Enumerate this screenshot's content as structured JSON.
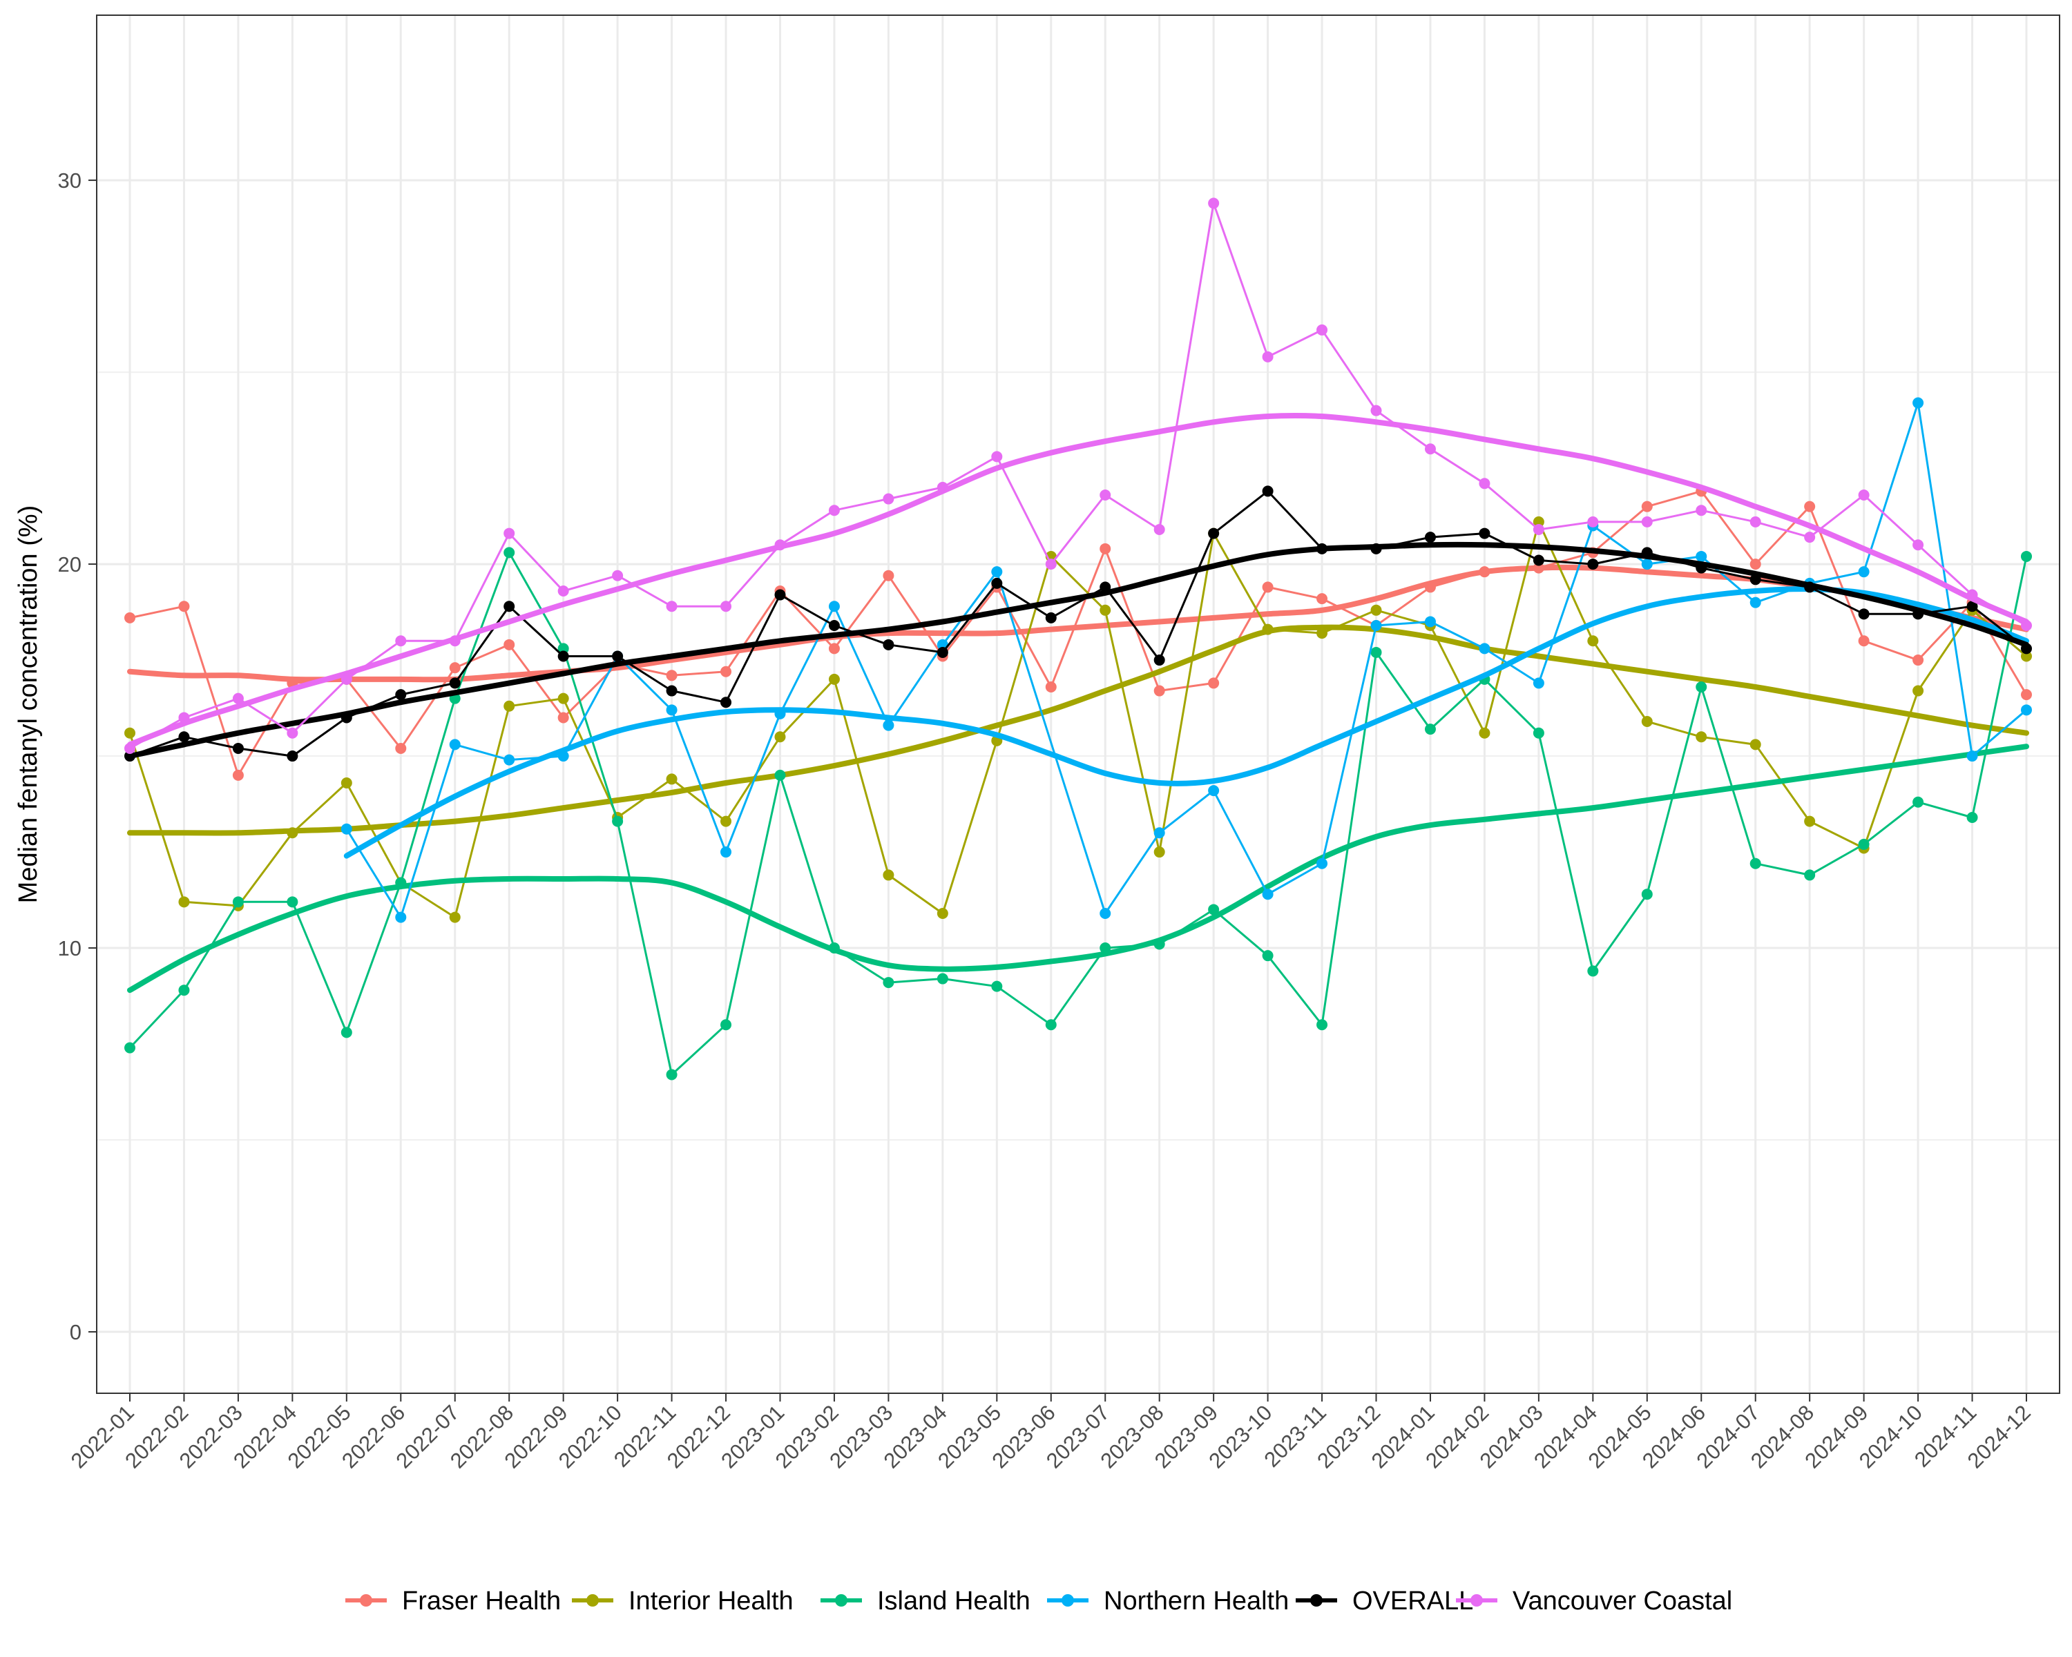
{
  "chart_data": {
    "type": "line",
    "title": "",
    "xlabel": "",
    "ylabel": "Median fentanyl concentration (%)",
    "ylim": [
      -1.6,
      34.3
    ],
    "yticks": [
      0,
      10,
      20,
      30
    ],
    "grid": true,
    "legend_position": "bottom",
    "categories": [
      "2022-01",
      "2022-02",
      "2022-03",
      "2022-04",
      "2022-05",
      "2022-06",
      "2022-07",
      "2022-08",
      "2022-09",
      "2022-10",
      "2022-11",
      "2022-12",
      "2023-01",
      "2023-02",
      "2023-03",
      "2023-04",
      "2023-05",
      "2023-06",
      "2023-07",
      "2023-08",
      "2023-09",
      "2023-10",
      "2023-11",
      "2023-12",
      "2024-01",
      "2024-02",
      "2024-03",
      "2024-04",
      "2024-05",
      "2024-06",
      "2024-07",
      "2024-08",
      "2024-09",
      "2024-10",
      "2024-11",
      "2024-12"
    ],
    "series": [
      {
        "name": "Fraser Health",
        "color": "#F8766D",
        "values": [
          18.6,
          18.9,
          14.5,
          16.9,
          17.0,
          15.2,
          17.3,
          17.9,
          16.0,
          17.4,
          17.1,
          17.2,
          19.3,
          17.8,
          19.7,
          17.6,
          19.4,
          16.8,
          20.4,
          16.7,
          16.9,
          19.4,
          19.1,
          18.4,
          19.4,
          19.8,
          19.9,
          20.3,
          21.5,
          21.9,
          20.0,
          21.5,
          18.0,
          17.5,
          19.0,
          16.6
        ],
        "trend": [
          17.2,
          17.1,
          17.1,
          17.0,
          17.0,
          17.0,
          17.0,
          17.1,
          17.2,
          17.3,
          17.5,
          17.7,
          17.9,
          18.1,
          18.2,
          18.2,
          18.2,
          18.3,
          18.4,
          18.5,
          18.6,
          18.7,
          18.8,
          19.1,
          19.5,
          19.8,
          19.9,
          19.9,
          19.8,
          19.7,
          19.6,
          19.4,
          19.2,
          18.9,
          18.6,
          18.3
        ]
      },
      {
        "name": "Interior Health",
        "color": "#A3A500",
        "values": [
          15.6,
          11.2,
          11.1,
          13.0,
          14.3,
          11.7,
          10.8,
          16.3,
          16.5,
          13.4,
          14.4,
          13.3,
          15.5,
          17.0,
          11.9,
          10.9,
          15.4,
          20.2,
          18.8,
          12.5,
          20.8,
          18.3,
          18.2,
          18.8,
          18.4,
          15.6,
          21.1,
          18.0,
          15.9,
          15.5,
          15.3,
          13.3,
          12.6,
          16.7,
          18.8,
          17.6
        ],
        "trend": [
          13.0,
          13.0,
          13.0,
          13.05,
          13.1,
          13.2,
          13.3,
          13.45,
          13.65,
          13.85,
          14.05,
          14.3,
          14.5,
          14.75,
          15.05,
          15.4,
          15.8,
          16.2,
          16.7,
          17.2,
          17.75,
          18.25,
          18.35,
          18.3,
          18.1,
          17.8,
          17.6,
          17.4,
          17.2,
          17.0,
          16.8,
          16.55,
          16.3,
          16.05,
          15.8,
          15.6
        ]
      },
      {
        "name": "Island Health",
        "color": "#00BF7D",
        "values": [
          7.4,
          8.9,
          11.2,
          11.2,
          7.8,
          11.7,
          16.5,
          20.3,
          17.8,
          13.3,
          6.7,
          8.0,
          14.5,
          10.0,
          9.1,
          9.2,
          9.0,
          8.0,
          10.0,
          10.1,
          11.0,
          9.8,
          8.0,
          17.7,
          15.7,
          17.0,
          15.6,
          9.4,
          11.4,
          16.8,
          12.2,
          11.9,
          12.7,
          13.8,
          13.4,
          20.2
        ],
        "trend": [
          8.9,
          9.7,
          10.35,
          10.9,
          11.35,
          11.6,
          11.75,
          11.8,
          11.8,
          11.8,
          11.7,
          11.2,
          10.55,
          9.95,
          9.55,
          9.45,
          9.5,
          9.65,
          9.85,
          10.2,
          10.8,
          11.6,
          12.35,
          12.9,
          13.2,
          13.35,
          13.5,
          13.65,
          13.85,
          14.05,
          14.25,
          14.45,
          14.65,
          14.85,
          15.05,
          15.25
        ]
      },
      {
        "name": "Northern Health",
        "color": "#00B0F6",
        "values": [
          null,
          null,
          null,
          null,
          13.1,
          10.8,
          15.3,
          14.9,
          15.0,
          17.6,
          16.2,
          12.5,
          16.1,
          18.9,
          15.8,
          17.9,
          19.8,
          null,
          10.9,
          13.0,
          14.1,
          11.4,
          12.2,
          18.4,
          18.5,
          17.8,
          16.9,
          21.0,
          20.0,
          20.2,
          19.0,
          19.5,
          19.8,
          24.2,
          15.0,
          16.2
        ],
        "trend": [
          null,
          null,
          null,
          null,
          12.4,
          13.2,
          13.95,
          14.6,
          15.15,
          15.65,
          15.95,
          16.15,
          16.2,
          16.15,
          16.0,
          15.85,
          15.55,
          15.05,
          14.55,
          14.3,
          14.35,
          14.7,
          15.3,
          15.9,
          16.5,
          17.1,
          17.8,
          18.45,
          18.9,
          19.15,
          19.3,
          19.35,
          19.25,
          18.95,
          18.55,
          18.0
        ]
      },
      {
        "name": "OVERALL",
        "color": "#000000",
        "values": [
          15.0,
          15.5,
          15.2,
          15.0,
          16.0,
          16.6,
          16.9,
          18.9,
          17.6,
          17.6,
          16.7,
          16.4,
          19.2,
          18.4,
          17.9,
          17.7,
          19.5,
          18.6,
          19.4,
          17.5,
          20.8,
          21.9,
          20.4,
          20.4,
          20.7,
          20.8,
          20.1,
          20.0,
          20.3,
          19.9,
          19.6,
          19.4,
          18.7,
          18.7,
          18.9,
          17.8
        ],
        "trend": [
          15.0,
          15.3,
          15.6,
          15.85,
          16.1,
          16.4,
          16.65,
          16.9,
          17.15,
          17.4,
          17.6,
          17.8,
          18.0,
          18.15,
          18.3,
          18.5,
          18.75,
          19.0,
          19.25,
          19.6,
          19.95,
          20.25,
          20.4,
          20.45,
          20.5,
          20.5,
          20.45,
          20.35,
          20.2,
          20.0,
          19.75,
          19.45,
          19.15,
          18.8,
          18.4,
          17.9
        ]
      },
      {
        "name": "Vancouver Coastal",
        "color": "#E76BF3",
        "values": [
          15.2,
          16.0,
          16.5,
          15.6,
          17.0,
          18.0,
          18.0,
          20.8,
          19.3,
          19.7,
          18.9,
          18.9,
          20.5,
          21.4,
          21.7,
          22.0,
          22.8,
          20.0,
          21.8,
          20.9,
          29.4,
          25.4,
          26.1,
          24.0,
          23.0,
          22.1,
          20.9,
          21.1,
          21.1,
          21.4,
          21.1,
          20.7,
          21.8,
          20.5,
          19.2,
          18.4
        ],
        "trend": [
          15.3,
          15.85,
          16.3,
          16.75,
          17.15,
          17.6,
          18.05,
          18.5,
          18.95,
          19.35,
          19.75,
          20.1,
          20.45,
          20.8,
          21.3,
          21.9,
          22.5,
          22.9,
          23.2,
          23.45,
          23.7,
          23.85,
          23.85,
          23.7,
          23.5,
          23.25,
          23.0,
          22.75,
          22.4,
          22.0,
          21.5,
          21.0,
          20.4,
          19.8,
          19.1,
          18.5
        ]
      }
    ]
  }
}
